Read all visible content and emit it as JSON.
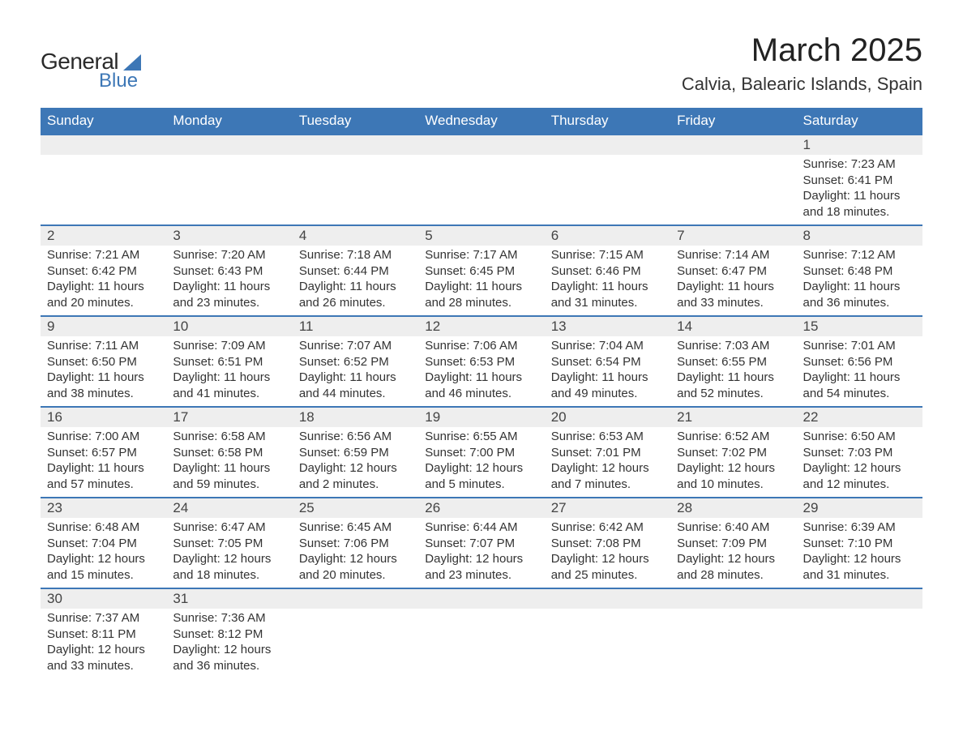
{
  "logo": {
    "word1": "General",
    "word2": "Blue"
  },
  "title": "March 2025",
  "location": "Calvia, Balearic Islands, Spain",
  "colors": {
    "header_bg": "#3d77b6",
    "header_text": "#ffffff",
    "daynum_bg": "#eeeeee",
    "row_divider": "#3d77b6",
    "text": "#333333",
    "logo_accent": "#3d77b6"
  },
  "typography": {
    "title_fontsize": 40,
    "location_fontsize": 22,
    "th_fontsize": 17,
    "daynum_fontsize": 17,
    "body_fontsize": 15
  },
  "weekdays": [
    "Sunday",
    "Monday",
    "Tuesday",
    "Wednesday",
    "Thursday",
    "Friday",
    "Saturday"
  ],
  "weeks": [
    [
      null,
      null,
      null,
      null,
      null,
      null,
      {
        "n": "1",
        "sunrise": "Sunrise: 7:23 AM",
        "sunset": "Sunset: 6:41 PM",
        "d1": "Daylight: 11 hours",
        "d2": "and 18 minutes."
      }
    ],
    [
      {
        "n": "2",
        "sunrise": "Sunrise: 7:21 AM",
        "sunset": "Sunset: 6:42 PM",
        "d1": "Daylight: 11 hours",
        "d2": "and 20 minutes."
      },
      {
        "n": "3",
        "sunrise": "Sunrise: 7:20 AM",
        "sunset": "Sunset: 6:43 PM",
        "d1": "Daylight: 11 hours",
        "d2": "and 23 minutes."
      },
      {
        "n": "4",
        "sunrise": "Sunrise: 7:18 AM",
        "sunset": "Sunset: 6:44 PM",
        "d1": "Daylight: 11 hours",
        "d2": "and 26 minutes."
      },
      {
        "n": "5",
        "sunrise": "Sunrise: 7:17 AM",
        "sunset": "Sunset: 6:45 PM",
        "d1": "Daylight: 11 hours",
        "d2": "and 28 minutes."
      },
      {
        "n": "6",
        "sunrise": "Sunrise: 7:15 AM",
        "sunset": "Sunset: 6:46 PM",
        "d1": "Daylight: 11 hours",
        "d2": "and 31 minutes."
      },
      {
        "n": "7",
        "sunrise": "Sunrise: 7:14 AM",
        "sunset": "Sunset: 6:47 PM",
        "d1": "Daylight: 11 hours",
        "d2": "and 33 minutes."
      },
      {
        "n": "8",
        "sunrise": "Sunrise: 7:12 AM",
        "sunset": "Sunset: 6:48 PM",
        "d1": "Daylight: 11 hours",
        "d2": "and 36 minutes."
      }
    ],
    [
      {
        "n": "9",
        "sunrise": "Sunrise: 7:11 AM",
        "sunset": "Sunset: 6:50 PM",
        "d1": "Daylight: 11 hours",
        "d2": "and 38 minutes."
      },
      {
        "n": "10",
        "sunrise": "Sunrise: 7:09 AM",
        "sunset": "Sunset: 6:51 PM",
        "d1": "Daylight: 11 hours",
        "d2": "and 41 minutes."
      },
      {
        "n": "11",
        "sunrise": "Sunrise: 7:07 AM",
        "sunset": "Sunset: 6:52 PM",
        "d1": "Daylight: 11 hours",
        "d2": "and 44 minutes."
      },
      {
        "n": "12",
        "sunrise": "Sunrise: 7:06 AM",
        "sunset": "Sunset: 6:53 PM",
        "d1": "Daylight: 11 hours",
        "d2": "and 46 minutes."
      },
      {
        "n": "13",
        "sunrise": "Sunrise: 7:04 AM",
        "sunset": "Sunset: 6:54 PM",
        "d1": "Daylight: 11 hours",
        "d2": "and 49 minutes."
      },
      {
        "n": "14",
        "sunrise": "Sunrise: 7:03 AM",
        "sunset": "Sunset: 6:55 PM",
        "d1": "Daylight: 11 hours",
        "d2": "and 52 minutes."
      },
      {
        "n": "15",
        "sunrise": "Sunrise: 7:01 AM",
        "sunset": "Sunset: 6:56 PM",
        "d1": "Daylight: 11 hours",
        "d2": "and 54 minutes."
      }
    ],
    [
      {
        "n": "16",
        "sunrise": "Sunrise: 7:00 AM",
        "sunset": "Sunset: 6:57 PM",
        "d1": "Daylight: 11 hours",
        "d2": "and 57 minutes."
      },
      {
        "n": "17",
        "sunrise": "Sunrise: 6:58 AM",
        "sunset": "Sunset: 6:58 PM",
        "d1": "Daylight: 11 hours",
        "d2": "and 59 minutes."
      },
      {
        "n": "18",
        "sunrise": "Sunrise: 6:56 AM",
        "sunset": "Sunset: 6:59 PM",
        "d1": "Daylight: 12 hours",
        "d2": "and 2 minutes."
      },
      {
        "n": "19",
        "sunrise": "Sunrise: 6:55 AM",
        "sunset": "Sunset: 7:00 PM",
        "d1": "Daylight: 12 hours",
        "d2": "and 5 minutes."
      },
      {
        "n": "20",
        "sunrise": "Sunrise: 6:53 AM",
        "sunset": "Sunset: 7:01 PM",
        "d1": "Daylight: 12 hours",
        "d2": "and 7 minutes."
      },
      {
        "n": "21",
        "sunrise": "Sunrise: 6:52 AM",
        "sunset": "Sunset: 7:02 PM",
        "d1": "Daylight: 12 hours",
        "d2": "and 10 minutes."
      },
      {
        "n": "22",
        "sunrise": "Sunrise: 6:50 AM",
        "sunset": "Sunset: 7:03 PM",
        "d1": "Daylight: 12 hours",
        "d2": "and 12 minutes."
      }
    ],
    [
      {
        "n": "23",
        "sunrise": "Sunrise: 6:48 AM",
        "sunset": "Sunset: 7:04 PM",
        "d1": "Daylight: 12 hours",
        "d2": "and 15 minutes."
      },
      {
        "n": "24",
        "sunrise": "Sunrise: 6:47 AM",
        "sunset": "Sunset: 7:05 PM",
        "d1": "Daylight: 12 hours",
        "d2": "and 18 minutes."
      },
      {
        "n": "25",
        "sunrise": "Sunrise: 6:45 AM",
        "sunset": "Sunset: 7:06 PM",
        "d1": "Daylight: 12 hours",
        "d2": "and 20 minutes."
      },
      {
        "n": "26",
        "sunrise": "Sunrise: 6:44 AM",
        "sunset": "Sunset: 7:07 PM",
        "d1": "Daylight: 12 hours",
        "d2": "and 23 minutes."
      },
      {
        "n": "27",
        "sunrise": "Sunrise: 6:42 AM",
        "sunset": "Sunset: 7:08 PM",
        "d1": "Daylight: 12 hours",
        "d2": "and 25 minutes."
      },
      {
        "n": "28",
        "sunrise": "Sunrise: 6:40 AM",
        "sunset": "Sunset: 7:09 PM",
        "d1": "Daylight: 12 hours",
        "d2": "and 28 minutes."
      },
      {
        "n": "29",
        "sunrise": "Sunrise: 6:39 AM",
        "sunset": "Sunset: 7:10 PM",
        "d1": "Daylight: 12 hours",
        "d2": "and 31 minutes."
      }
    ],
    [
      {
        "n": "30",
        "sunrise": "Sunrise: 7:37 AM",
        "sunset": "Sunset: 8:11 PM",
        "d1": "Daylight: 12 hours",
        "d2": "and 33 minutes."
      },
      {
        "n": "31",
        "sunrise": "Sunrise: 7:36 AM",
        "sunset": "Sunset: 8:12 PM",
        "d1": "Daylight: 12 hours",
        "d2": "and 36 minutes."
      },
      null,
      null,
      null,
      null,
      null
    ]
  ]
}
